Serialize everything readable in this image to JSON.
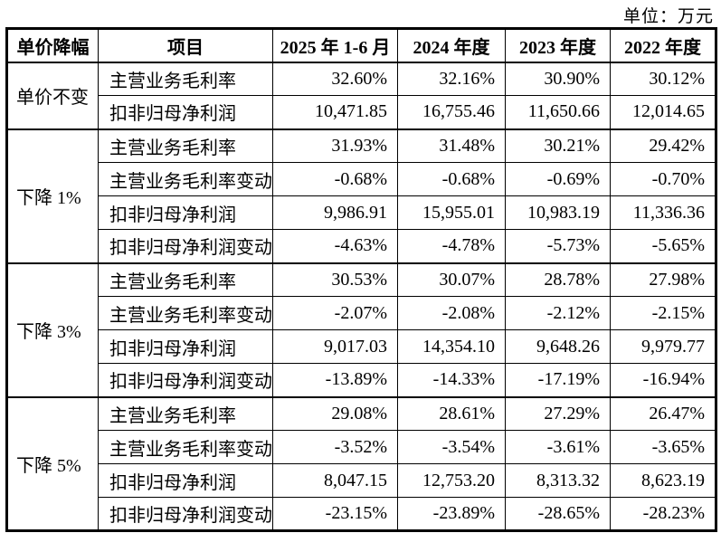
{
  "unit_label": "单位：万元",
  "table": {
    "headers": [
      "单价降幅",
      "项目",
      "2025 年 1-6 月",
      "2024 年度",
      "2023 年度",
      "2022 年度"
    ],
    "groups": [
      {
        "label": "单价不变",
        "rows": [
          {
            "item": "主营业务毛利率",
            "values": [
              "32.60%",
              "32.16%",
              "30.90%",
              "30.12%"
            ]
          },
          {
            "item": "扣非归母净利润",
            "values": [
              "10,471.85",
              "16,755.46",
              "11,650.66",
              "12,014.65"
            ]
          }
        ]
      },
      {
        "label": "下降 1%",
        "rows": [
          {
            "item": "主营业务毛利率",
            "values": [
              "31.93%",
              "31.48%",
              "30.21%",
              "29.42%"
            ]
          },
          {
            "item": "主营业务毛利率变动",
            "values": [
              "-0.68%",
              "-0.68%",
              "-0.69%",
              "-0.70%"
            ]
          },
          {
            "item": "扣非归母净利润",
            "values": [
              "9,986.91",
              "15,955.01",
              "10,983.19",
              "11,336.36"
            ]
          },
          {
            "item": "扣非归母净利润变动",
            "values": [
              "-4.63%",
              "-4.78%",
              "-5.73%",
              "-5.65%"
            ]
          }
        ]
      },
      {
        "label": "下降 3%",
        "rows": [
          {
            "item": "主营业务毛利率",
            "values": [
              "30.53%",
              "30.07%",
              "28.78%",
              "27.98%"
            ]
          },
          {
            "item": "主营业务毛利率变动",
            "values": [
              "-2.07%",
              "-2.08%",
              "-2.12%",
              "-2.15%"
            ]
          },
          {
            "item": "扣非归母净利润",
            "values": [
              "9,017.03",
              "14,354.10",
              "9,648.26",
              "9,979.77"
            ]
          },
          {
            "item": "扣非归母净利润变动",
            "values": [
              "-13.89%",
              "-14.33%",
              "-17.19%",
              "-16.94%"
            ]
          }
        ]
      },
      {
        "label": "下降 5%",
        "rows": [
          {
            "item": "主营业务毛利率",
            "values": [
              "29.08%",
              "28.61%",
              "27.29%",
              "26.47%"
            ]
          },
          {
            "item": "主营业务毛利率变动",
            "values": [
              "-3.52%",
              "-3.54%",
              "-3.61%",
              "-3.65%"
            ]
          },
          {
            "item": "扣非归母净利润",
            "values": [
              "8,047.15",
              "12,753.20",
              "8,313.32",
              "8,623.19"
            ]
          },
          {
            "item": "扣非归母净利润变动",
            "values": [
              "-23.15%",
              "-23.89%",
              "-28.65%",
              "-28.23%"
            ]
          }
        ]
      }
    ]
  }
}
